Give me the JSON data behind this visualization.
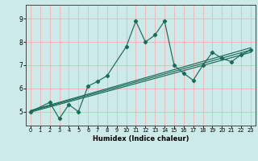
{
  "title": "",
  "xlabel": "Humidex (Indice chaleur)",
  "ylabel": "",
  "bg_color": "#cceae8",
  "grid_color": "#f0b8b8",
  "line_color": "#1a6b5a",
  "xlim": [
    -0.5,
    23.5
  ],
  "ylim": [
    4.4,
    9.6
  ],
  "xticks": [
    0,
    1,
    2,
    3,
    4,
    5,
    6,
    7,
    8,
    9,
    10,
    11,
    12,
    13,
    14,
    15,
    16,
    17,
    18,
    19,
    20,
    21,
    22,
    23
  ],
  "yticks": [
    5,
    6,
    7,
    8,
    9
  ],
  "curve1_x": [
    0,
    2,
    3,
    4,
    5,
    6,
    7,
    8,
    10,
    11,
    12,
    13,
    14,
    15,
    16,
    17,
    18,
    19,
    20,
    21,
    22,
    23
  ],
  "curve1_y": [
    5.0,
    5.4,
    4.7,
    5.3,
    5.0,
    6.1,
    6.3,
    6.55,
    7.8,
    8.9,
    8.0,
    8.3,
    8.9,
    7.0,
    6.65,
    6.35,
    7.0,
    7.55,
    7.3,
    7.15,
    7.45,
    7.65
  ],
  "line1_x": [
    0,
    23
  ],
  "line1_y": [
    5.05,
    7.75
  ],
  "line2_x": [
    0,
    23
  ],
  "line2_y": [
    5.02,
    7.65
  ],
  "line3_x": [
    0,
    23
  ],
  "line3_y": [
    4.98,
    7.55
  ]
}
